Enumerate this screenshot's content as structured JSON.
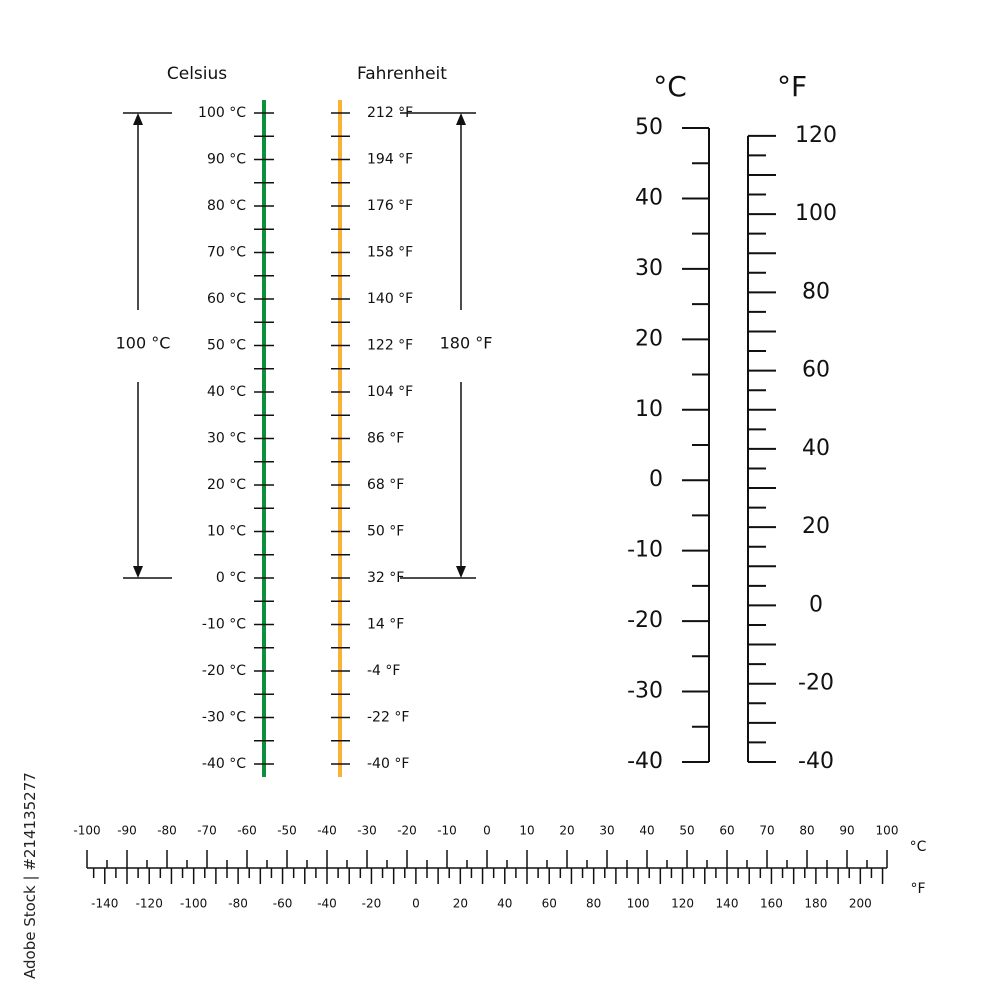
{
  "watermark": "Adobe Stock | #214135277",
  "colors": {
    "celsius_line": "#0e8f3e",
    "fahrenheit_line": "#f9b233",
    "ink": "#111111"
  },
  "left_scale": {
    "celsius_title": "Celsius",
    "fahrenheit_title": "Fahrenheit",
    "celsius_labels": [
      "100 °C",
      "90 °C",
      "80 °C",
      "70 °C",
      "60 °C",
      "50 °C",
      "40 °C",
      "30 °C",
      "20 °C",
      "10 °C",
      "0 °C",
      "-10 °C",
      "-20 °C",
      "-30 °C",
      "-40 °C"
    ],
    "fahrenheit_labels": [
      "212 °F",
      "194 °F",
      "176 °F",
      "158 °F",
      "140 °F",
      "122 °F",
      "104 °F",
      "86 °F",
      "68 °F",
      "50 °F",
      "32 °F",
      "14 °F",
      "-4 °F",
      "-22 °F",
      "-40 °F"
    ],
    "celsius_range_label": "100 °C",
    "fahrenheit_range_label": "180 °F"
  },
  "thermometer": {
    "celsius_unit": "°C",
    "fahrenheit_unit": "°F",
    "celsius_labels": [
      "50",
      "40",
      "30",
      "20",
      "10",
      "0",
      "-10",
      "-20",
      "-30",
      "-40"
    ],
    "fahrenheit_labels": [
      "120",
      "100",
      "80",
      "60",
      "40",
      "20",
      "0",
      "-20",
      "-40"
    ],
    "celsius_range": [
      -40,
      50
    ],
    "fahrenheit_range": [
      -40,
      120
    ]
  },
  "ruler": {
    "celsius_unit": "°C",
    "fahrenheit_unit": "°F",
    "celsius_labels": [
      "-100",
      "-90",
      "-80",
      "-70",
      "-60",
      "-50",
      "-40",
      "-30",
      "-20",
      "-10",
      "0",
      "10",
      "20",
      "30",
      "40",
      "50",
      "60",
      "70",
      "80",
      "90",
      "100"
    ],
    "fahrenheit_labels": [
      "-140",
      "-120",
      "-100",
      "-80",
      "-60",
      "-40",
      "-20",
      "0",
      "20",
      "40",
      "60",
      "80",
      "100",
      "120",
      "140",
      "160",
      "180",
      "200"
    ]
  }
}
